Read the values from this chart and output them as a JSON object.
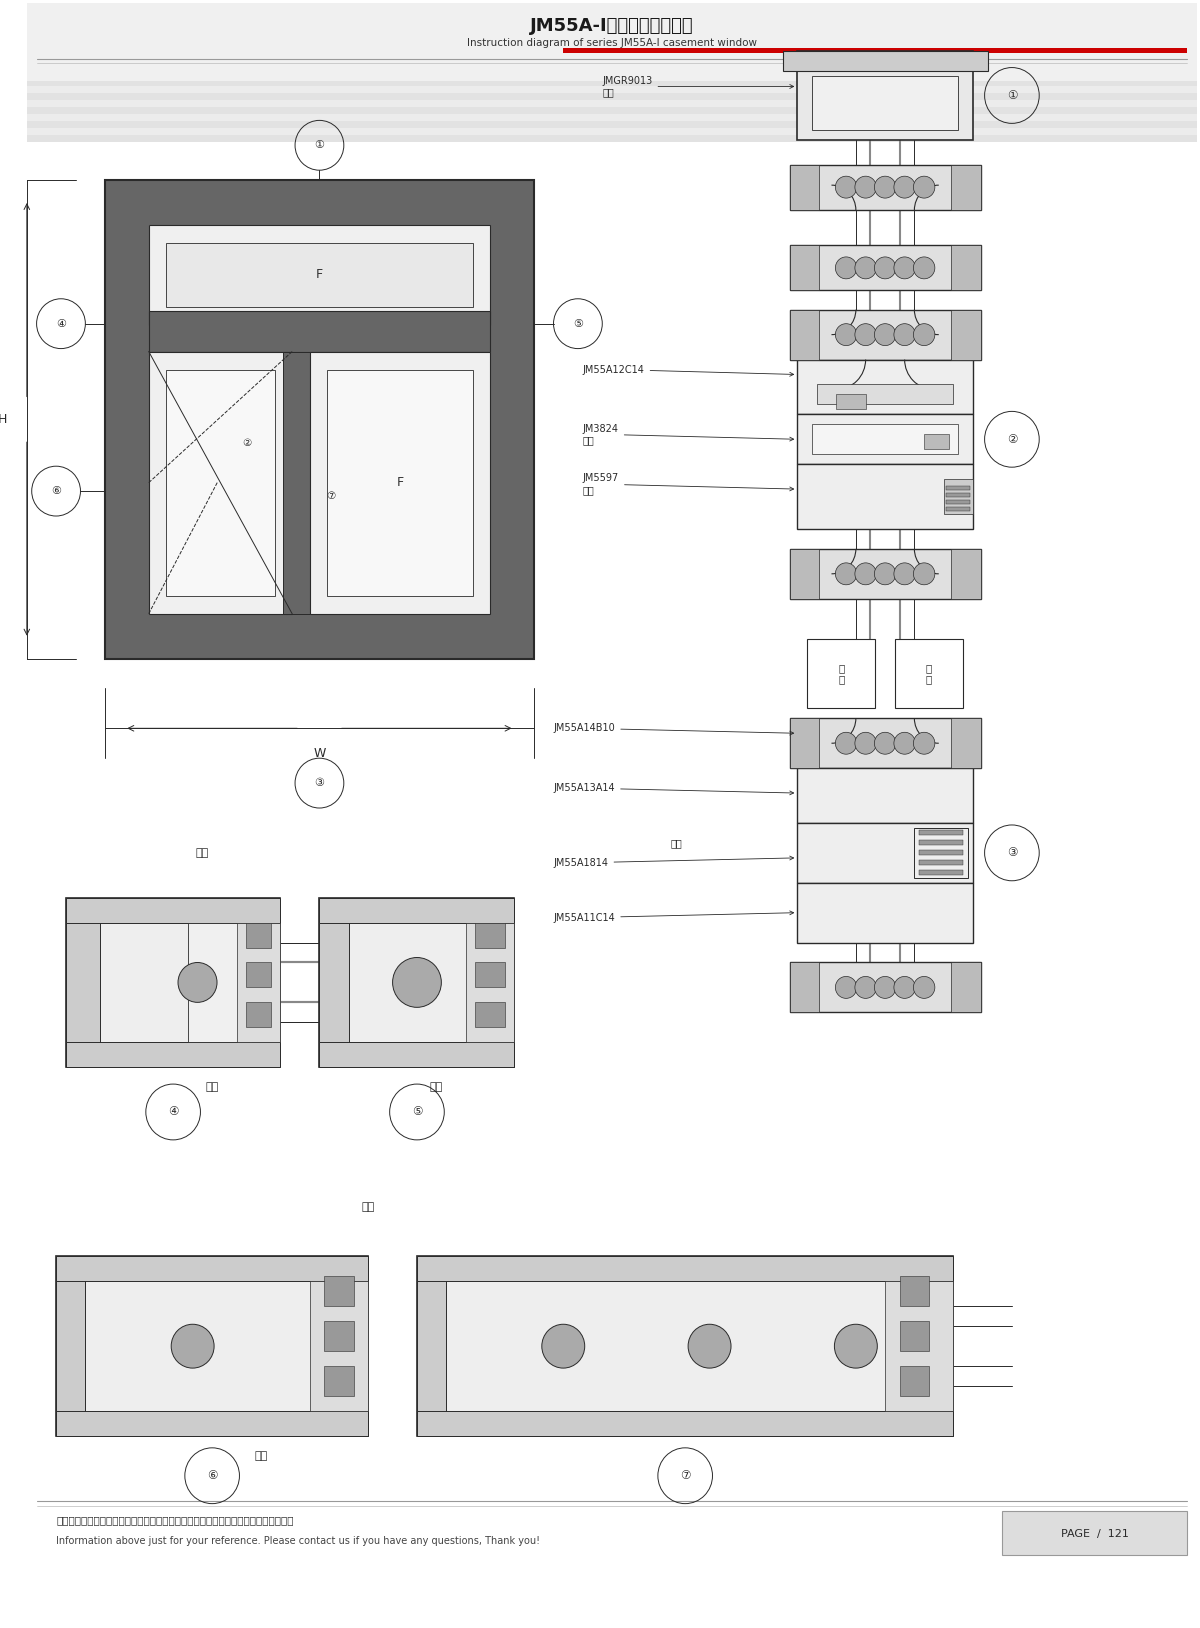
{
  "title_cn": "JM55A-I系列平开窗结构图",
  "title_en": "Instruction diagram of series JM55A-I casement window",
  "bg_color": "#ffffff",
  "page_num": "PAGE  /  121",
  "footer_cn": "图中所示型材截面、装配、编号、尺寸及重量仅供参考。如有疑问，请向本公司查询。",
  "footer_en": "Information above just for your reference. Please contact us if you have any questions, Thank you!",
  "labels": [
    "①",
    "②",
    "③",
    "④",
    "⑤",
    "⑥",
    "⑦"
  ],
  "part_labels": {
    "JMGR9013": "JMGR9013\n角码",
    "JM55A12C14": "JM55A12C14",
    "JM3824": "JM3824\n角码",
    "JM5597": "JM5597\n角码",
    "JM55A14B10": "JM55A14B10",
    "JM55A13A14": "JM55A13A14",
    "window_stay": "窗撑",
    "JM55A1814": "JM55A1814",
    "JM55A11C14": "JM55A11C14"
  },
  "indoor_cn": "室内",
  "outdoor_cn": "室外",
  "W_label": "W",
  "H_label": "H",
  "F_label": "F",
  "red_line_color": "#cc0000",
  "lc": "#2a2a2a",
  "dark_fill": "#555555",
  "mid_fill": "#888888",
  "light_fill": "#cccccc",
  "bg_stripe1": "#e8e8e8",
  "bg_stripe2": "#d5d5d5"
}
